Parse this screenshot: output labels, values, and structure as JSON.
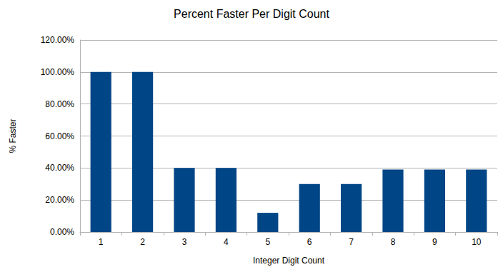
{
  "chart_data": {
    "type": "bar",
    "title": "Percent Faster Per Digit Count",
    "x_label": "Integer Digit Count",
    "y_label": "% Faster",
    "categories": [
      "1",
      "2",
      "3",
      "4",
      "5",
      "6",
      "7",
      "8",
      "9",
      "10"
    ],
    "values": [
      100,
      100,
      40,
      40,
      12,
      30,
      30,
      39,
      39,
      39
    ],
    "color": "#004586",
    "ylim": [
      0,
      120
    ],
    "yticks": [
      {
        "value": 0,
        "label": "0.00%"
      },
      {
        "value": 20,
        "label": "20.00%"
      },
      {
        "value": 40,
        "label": "40.00%"
      },
      {
        "value": 60,
        "label": "60.00%"
      },
      {
        "value": 80,
        "label": "80.00%"
      },
      {
        "value": 100,
        "label": "100.00%"
      },
      {
        "value": 120,
        "label": "120.00%"
      }
    ],
    "grid": true
  }
}
